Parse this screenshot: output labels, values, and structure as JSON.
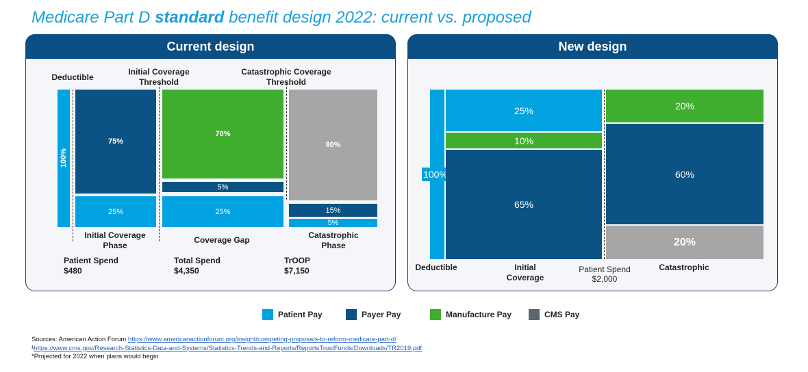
{
  "title": {
    "prefix": "Medicare Part D ",
    "emph": "standard",
    "suffix": " benefit design 2022: current vs. proposed"
  },
  "colors": {
    "patient": "#00a3e0",
    "payer": "#0b5384",
    "manufacturer": "#41ad2f",
    "cms": "#a6a6a6",
    "legend_cms": "#5c6770"
  },
  "chart_data": [
    {
      "type": "bar",
      "title": "Current design",
      "stacked": true,
      "phases": [
        {
          "name": "Deductible",
          "segments": [
            {
              "payer": "Patient Pay",
              "value": 100
            }
          ]
        },
        {
          "name": "Initial Coverage Phase",
          "segments": [
            {
              "payer": "Payer Pay",
              "value": 75
            },
            {
              "payer": "Patient Pay",
              "value": 25
            }
          ]
        },
        {
          "name": "Coverage Gap",
          "segments": [
            {
              "payer": "Manufacture Pay",
              "value": 70
            },
            {
              "payer": "Payer Pay",
              "value": 5
            },
            {
              "payer": "Patient Pay",
              "value": 25
            }
          ]
        },
        {
          "name": "Catastrophic Phase",
          "segments": [
            {
              "payer": "CMS Pay",
              "value": 80
            },
            {
              "payer": "Payer Pay",
              "value": 15
            },
            {
              "payer": "Patient Pay",
              "value": 5
            }
          ]
        }
      ],
      "labels": {
        "deductible": "Deductible",
        "icl_threshold": "Initial Coverage Threshold",
        "cat_threshold": "Catastrophic  Coverage Threshold",
        "phase_initial": "Initial Coverage Phase",
        "phase_gap": "Coverage Gap",
        "phase_cat": "Catastrophic Phase",
        "deductible_pct": "100%",
        "initial_payer": "75%",
        "initial_patient": "25%",
        "gap_mfr": "70%",
        "gap_payer": "5%",
        "gap_patient": "25%",
        "cat_cms": "80%",
        "cat_payer": "15%",
        "cat_patient": "5%"
      },
      "spend": [
        {
          "label": "Patient Spend",
          "value": "$480"
        },
        {
          "label": "Total Spend",
          "value": "$4,350"
        },
        {
          "label": "TrOOP",
          "value": "$7,150"
        }
      ]
    },
    {
      "type": "bar",
      "title": "New design",
      "stacked": true,
      "phases": [
        {
          "name": "Deductible",
          "segments": [
            {
              "payer": "Patient Pay",
              "value": 100
            }
          ]
        },
        {
          "name": "Initial Coverage",
          "segments": [
            {
              "payer": "Patient Pay",
              "value": 25
            },
            {
              "payer": "Manufacture Pay",
              "value": 10
            },
            {
              "payer": "Payer Pay",
              "value": 65
            }
          ]
        },
        {
          "name": "Catastrophic",
          "segments": [
            {
              "payer": "Manufacture Pay",
              "value": 20
            },
            {
              "payer": "Payer Pay",
              "value": 60
            },
            {
              "payer": "CMS Pay",
              "value": 20
            }
          ]
        }
      ],
      "labels": {
        "deductible": "Deductible",
        "initial": "Initial Coverage",
        "catastrophic": "Catastrophic",
        "deductible_pct": "100%",
        "initial_patient": "25%",
        "initial_mfr": "10%",
        "initial_payer": "65%",
        "cat_mfr": "20%",
        "cat_payer": "60%",
        "cat_cms": "20%",
        "patient_spend_label": "Patient Spend",
        "patient_spend_value": "$2,000"
      }
    }
  ],
  "legend": [
    {
      "label": "Patient Pay"
    },
    {
      "label": "Payer Pay"
    },
    {
      "label": "Manufacture Pay"
    },
    {
      "label": "CMS Pay"
    }
  ],
  "sources": {
    "line1_prefix": "Sources: American Action Forum ",
    "line1_link": "https://www.americanactionforum.org/insight/competing-proposals-to-reform-medicare-part-d/",
    "line2_prefix": "¹",
    "line2_link": "https://www.cms.gov/Research-Statistics-Data-and-Systems/Statistics-Trends-and-Reports/ReportsTrustFunds/Downloads/TR2019.pdf",
    "line3": "*Projected for 2022 when plans would begin"
  }
}
